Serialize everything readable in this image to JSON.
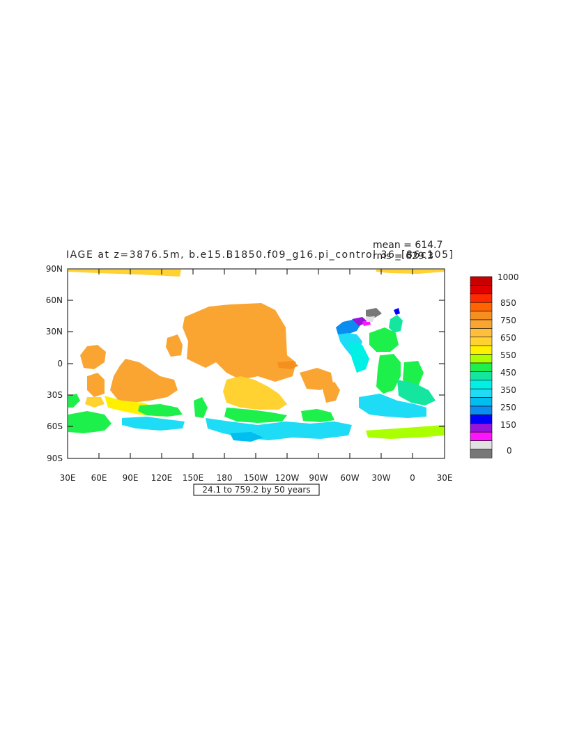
{
  "title": "IAGE at z=3876.5m, b.e15.B1850.f09_g16.pi_control.36_[86c105]",
  "stats": {
    "mean": "mean = 614.7",
    "rms": "rms = 629.3"
  },
  "time_box": "24.1 to 759.2 by 50 years",
  "axes": {
    "lat_ticks": [
      "90N",
      "60N",
      "30N",
      "0",
      "30S",
      "60S",
      "90S"
    ],
    "lon_ticks": [
      "30E",
      "60E",
      "90E",
      "120E",
      "150E",
      "180",
      "150W",
      "120W",
      "90W",
      "60W",
      "30W",
      "0",
      "30E"
    ]
  },
  "colorbar": {
    "labels": [
      "1000",
      "850",
      "750",
      "650",
      "550",
      "450",
      "350",
      "250",
      "150",
      "0"
    ],
    "colors": [
      "#c80000",
      "#e00000",
      "#ff2a00",
      "#ff6400",
      "#f5901e",
      "#faa532",
      "#ffbe3c",
      "#ffd232",
      "#fff000",
      "#aaff00",
      "#1ef04b",
      "#14e6a0",
      "#00f0e6",
      "#1edcf5",
      "#00bef0",
      "#0a8cf0",
      "#0000ff",
      "#9614dc",
      "#ff14ff",
      "#e1e1e1",
      "#787878"
    ]
  },
  "legend_colors": {
    "nan": "#ffffff",
    "frame": "#000000"
  }
}
